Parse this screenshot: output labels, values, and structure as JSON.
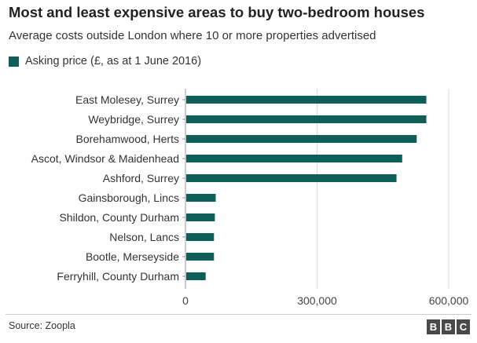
{
  "header": {
    "title": "Most and least expensive areas to buy two-bedroom houses",
    "subtitle": "Average costs outside London where 10 or more properties advertised"
  },
  "colors": {
    "bar": "#0e5e59",
    "grid": "#d9d9d9",
    "text": "#222222"
  },
  "footer": {
    "source": "Source: Zoopla",
    "logo_letters": [
      "B",
      "B",
      "C"
    ]
  },
  "chart_data": {
    "type": "bar",
    "orientation": "horizontal",
    "title": "Most and least expensive areas to buy two-bedroom houses",
    "subtitle": "Average costs outside London where 10 or more properties advertised",
    "categories": [
      "East Molesey, Surrey",
      "Weybridge, Surrey",
      "Borehamwood, Herts",
      "Ascot, Windsor & Maidenhead",
      "Ashford, Surrey",
      "Gainsborough, Lincs",
      "Shildon, County Durham",
      "Nelson, Lancs",
      "Bootle, Merseyside",
      "Ferryhill, County Durham"
    ],
    "series": [
      {
        "name": "Asking price (£, as at 1 June 2016)",
        "values": [
          549000,
          549000,
          527000,
          494000,
          481000,
          69000,
          67000,
          65000,
          65000,
          46000
        ]
      }
    ],
    "xlim": [
      0,
      600000
    ],
    "xticks": [
      0,
      300000,
      600000
    ],
    "xtick_labels": [
      "0",
      "300,000",
      "600,000"
    ],
    "xlabel": "",
    "ylabel": "",
    "grid": "vertical",
    "legend_position": "top-left"
  }
}
